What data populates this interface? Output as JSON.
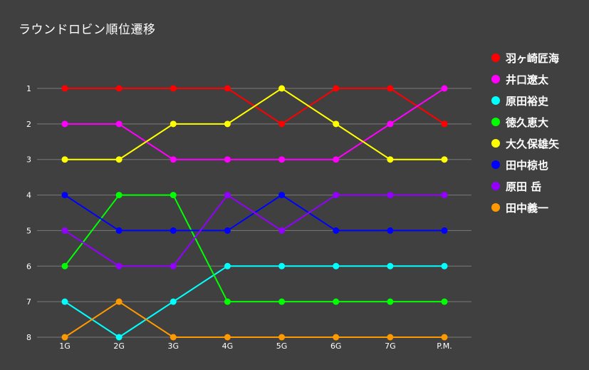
{
  "chart_data": {
    "type": "line",
    "title": "ラウンドロビン順位遷移",
    "x": [
      "1G",
      "2G",
      "3G",
      "4G",
      "5G",
      "6G",
      "7G",
      "P.M."
    ],
    "y_ticks": [
      "1",
      "2",
      "3",
      "4",
      "5",
      "6",
      "7",
      "8"
    ],
    "ylim": [
      1,
      8
    ],
    "y_reversed": true,
    "grid": "horizontal",
    "legend_position": "right",
    "series": [
      {
        "name": "羽ヶ崎匠海",
        "color": "#ff0000",
        "values": [
          1,
          1,
          1,
          1,
          2,
          1,
          1,
          2
        ]
      },
      {
        "name": "井口遼太",
        "color": "#ff00ff",
        "values": [
          2,
          2,
          3,
          3,
          3,
          3,
          2,
          1
        ]
      },
      {
        "name": "原田裕史",
        "color": "#00ffff",
        "values": [
          7,
          8,
          7,
          6,
          6,
          6,
          6,
          6
        ]
      },
      {
        "name": "徳久恵大",
        "color": "#00ff00",
        "values": [
          6,
          4,
          4,
          7,
          7,
          7,
          7,
          7
        ]
      },
      {
        "name": "大久保雄矢",
        "color": "#ffff00",
        "values": [
          3,
          3,
          2,
          2,
          1,
          2,
          3,
          3
        ]
      },
      {
        "name": "田中椋也",
        "color": "#0000ff",
        "values": [
          4,
          5,
          5,
          5,
          4,
          5,
          5,
          5
        ]
      },
      {
        "name": "原田 岳",
        "color": "#9400ff",
        "values": [
          5,
          6,
          6,
          4,
          5,
          4,
          4,
          4
        ]
      },
      {
        "name": "田中義一",
        "color": "#ff9900",
        "values": [
          8,
          7,
          8,
          8,
          8,
          8,
          8,
          8
        ]
      }
    ]
  }
}
